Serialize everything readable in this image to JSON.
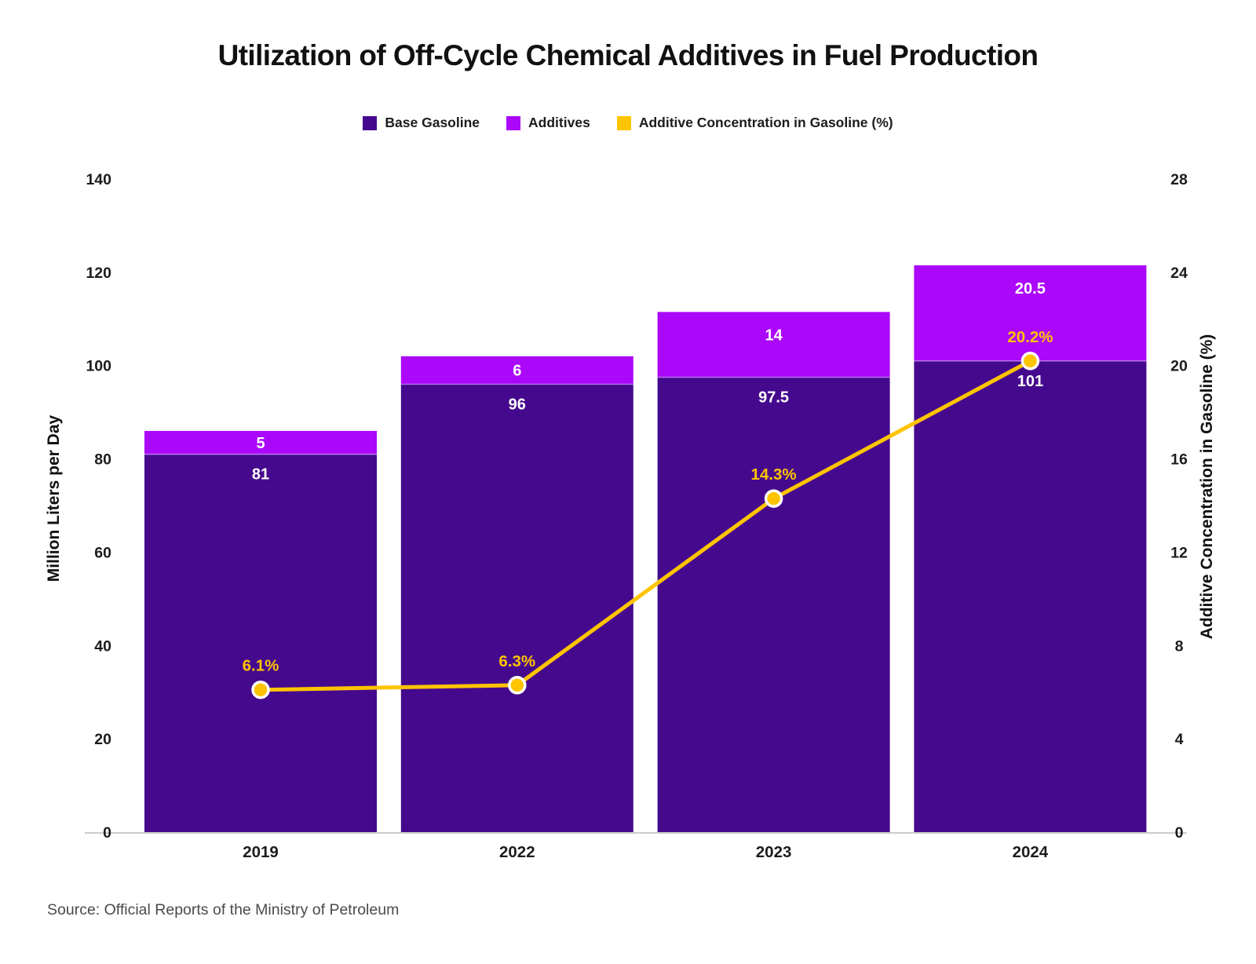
{
  "title": "Utilization of Off-Cycle Chemical Additives in Fuel Production",
  "source": "Source: Official Reports of the Ministry of Petroleum",
  "colors": {
    "base_gasoline": "#45098E",
    "additives": "#AB08FA",
    "concentration_line": "#FFC400",
    "bar_value_text": "#FFFFFF",
    "axis_text": "#1c1c1c",
    "axis_line": "#cccccc",
    "segment_divider": "#d9b8ff"
  },
  "legend": {
    "items": [
      {
        "label": "Base Gasoline",
        "color": "#45098E"
      },
      {
        "label": "Additives",
        "color": "#AB08FA"
      },
      {
        "label": "Additive Concentration in Gasoline (%)",
        "color": "#FFC400"
      }
    ]
  },
  "chart_data": {
    "type": "bar",
    "subtype": "stacked-bar-with-line",
    "categories": [
      "2019",
      "2022",
      "2023",
      "2024"
    ],
    "series": [
      {
        "name": "Base Gasoline",
        "type": "bar",
        "stack": "fuel",
        "axis": "left",
        "color": "#45098E",
        "values": [
          81,
          96,
          97.5,
          101
        ]
      },
      {
        "name": "Additives",
        "type": "bar",
        "stack": "fuel",
        "axis": "left",
        "color": "#AB08FA",
        "values": [
          5,
          6,
          14,
          20.5
        ]
      },
      {
        "name": "Additive Concentration in Gasoline (%)",
        "type": "line",
        "axis": "right",
        "color": "#FFC400",
        "values": [
          6.1,
          6.3,
          14.3,
          20.2
        ],
        "point_labels": [
          "6.1%",
          "6.3%",
          "14.3%",
          "20.2%"
        ]
      }
    ],
    "title": "Utilization of Off-Cycle Chemical Additives in Fuel Production",
    "left_axis": {
      "label": "Million Liters per Day",
      "range": [
        0,
        140
      ],
      "ticks": [
        0,
        20,
        40,
        60,
        80,
        100,
        120,
        140
      ]
    },
    "right_axis": {
      "label": "Additive Concentration in Gasoline (%)",
      "range": [
        0,
        28
      ],
      "ticks": [
        0,
        4,
        8,
        12,
        16,
        20,
        24,
        28
      ]
    },
    "grid": false,
    "legend_position": "top"
  }
}
